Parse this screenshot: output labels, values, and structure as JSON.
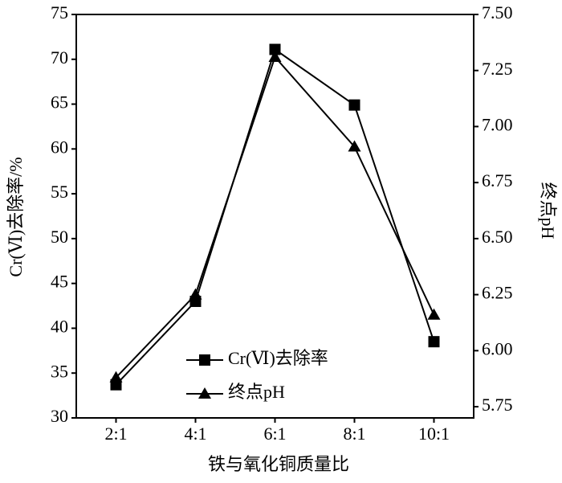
{
  "chart_data": {
    "type": "line",
    "x_label": "铁与氧化铜质量比",
    "y_label": "Cr(Ⅵ)去除率/%",
    "y2_label": "终点pH",
    "categories": [
      "2:1",
      "4:1",
      "6:1",
      "8:1",
      "10:1"
    ],
    "series": [
      {
        "name": "Cr(Ⅵ)去除率",
        "color": "#000000",
        "marker": "square",
        "values": [
          33.7,
          43.0,
          71.1,
          64.9,
          38.5
        ]
      },
      {
        "name": "终点pH",
        "color": "#000000",
        "marker": "triangle",
        "axis": "y2",
        "values": [
          5.88,
          6.25,
          7.31,
          6.91,
          6.16
        ]
      }
    ],
    "ylim": [
      30,
      75
    ],
    "yticks": [
      30,
      35,
      40,
      45,
      50,
      55,
      60,
      65,
      70,
      75
    ],
    "y2lim": [
      5.7,
      7.5
    ],
    "y2ticks": [
      {
        "value": 5.75,
        "label": "5.75"
      },
      {
        "value": 6.0,
        "label": "6.00"
      },
      {
        "value": 6.25,
        "label": "6.25"
      },
      {
        "value": 6.5,
        "label": "6.50"
      },
      {
        "value": 6.75,
        "label": "6.75"
      },
      {
        "value": 7.0,
        "label": "7.00"
      },
      {
        "value": 7.25,
        "label": "7.25"
      },
      {
        "value": 7.5,
        "label": "7.50"
      }
    ],
    "legend": "lower left"
  }
}
